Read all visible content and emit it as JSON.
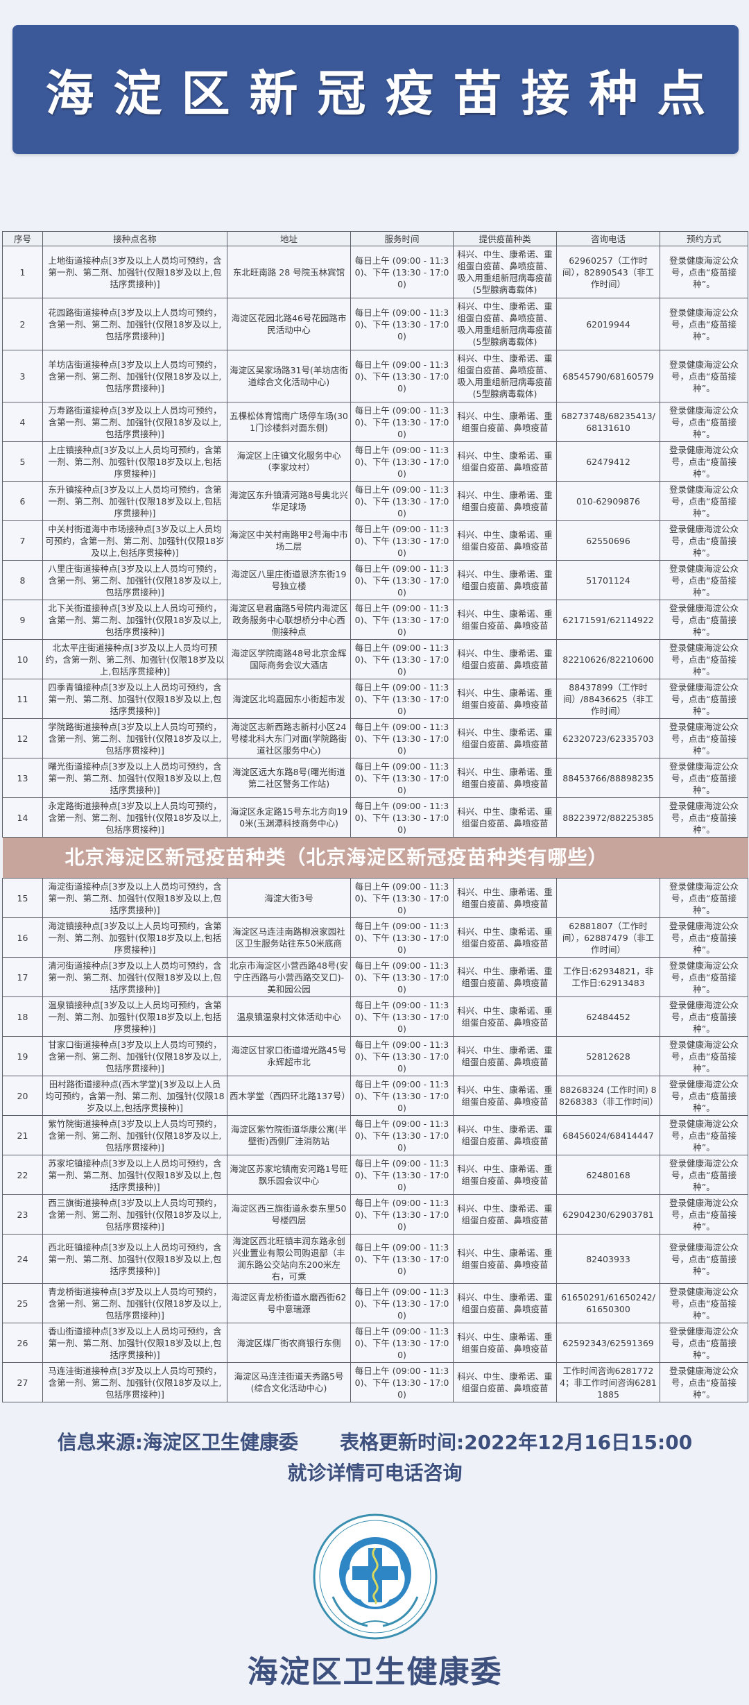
{
  "header": {
    "title": "海淀区新冠疫苗接种点"
  },
  "colors": {
    "banner": "#3b5898",
    "text_dark_blue": "#3d4f7c",
    "page_bg": "#eef2f8",
    "overlay": "#be968c"
  },
  "table": {
    "columns": [
      "序号",
      "接种点名称",
      "地址",
      "服务时间",
      "提供疫苗种类",
      "咨询电话",
      "预约方式"
    ],
    "rows": [
      {
        "no": "1",
        "name": "上地街道接种点[3岁及以上人员均可预约，含第一剂、第二剂、加强针(仅限18岁及以上,包括序贯接种)]",
        "address": "东北旺南路 28 号院玉林宾馆",
        "time": "每日上午 (09:00 - 11:30)、下午 (13:30 - 17:00)",
        "vaccine": "科兴、中生、康希诺、重组蛋白疫苗、鼻喷疫苗、吸入用重组新冠病毒疫苗(5型腺病毒载体)",
        "phone": "62960257（工作时间），82890543（非工作时间）",
        "booking": "登录健康海淀公众号，点击“疫苗接种”。"
      },
      {
        "no": "2",
        "name": "花园路街道接种点[3岁及以上人员均可预约，含第一剂、第二剂、加强针(仅限18岁及以上,包括序贯接种)]",
        "address": "海淀区花园北路46号花园路市民活动中心",
        "time": "每日上午 (09:00 - 11:30)、下午 (13:30 - 17:00)",
        "vaccine": "科兴、中生、康希诺、重组蛋白疫苗、鼻喷疫苗、吸入用重组新冠病毒疫苗(5型腺病毒载体)",
        "phone": "62019944",
        "booking": "登录健康海淀公众号，点击“疫苗接种”。"
      },
      {
        "no": "3",
        "name": "羊坊店街道接种点[3岁及以上人员均可预约，含第一剂、第二剂、加强针(仅限18岁及以上,包括序贯接种)]",
        "address": "海淀区吴家场路31号(羊坊店街道综合文化活动中心)",
        "time": "每日上午 (09:00 - 11:30)、下午 (13:30 - 17:00)",
        "vaccine": "科兴、中生、康希诺、重组蛋白疫苗、鼻喷疫苗、吸入用重组新冠病毒疫苗(5型腺病毒载体)",
        "phone": "68545790/68160579",
        "booking": "登录健康海淀公众号，点击“疫苗接种”。"
      },
      {
        "no": "4",
        "name": "万寿路街道接种点[3岁及以上人员均可预约，含第一剂、第二剂、加强针(仅限18岁及以上,包括序贯接种)]",
        "address": "五棵松体育馆南广场停车场(301门诊楼斜对面东侧)",
        "time": "每日上午 (09:00 - 11:30)、下午 (13:30 - 17:00)",
        "vaccine": "科兴、中生、康希诺、重组蛋白疫苗、鼻喷疫苗",
        "phone": "68273748/68235413/68131610",
        "booking": "登录健康海淀公众号，点击“疫苗接种”。"
      },
      {
        "no": "5",
        "name": "上庄镇接种点[3岁及以上人员均可预约，含第一剂、第二剂、加强针(仅限18岁及以上,包括序贯接种)]",
        "address": "海淀区上庄镇文化服务中心（李家坟村）",
        "time": "每日上午 (09:00 - 11:30)、下午 (13:30 - 17:00)",
        "vaccine": "科兴、中生、康希诺、重组蛋白疫苗、鼻喷疫苗",
        "phone": "62479412",
        "booking": "登录健康海淀公众号，点击“疫苗接种”。"
      },
      {
        "no": "6",
        "name": "东升镇接种点[3岁及以上人员均可预约，含第一剂、第二剂、加强针(仅限18岁及以上,包括序贯接种)]",
        "address": "海淀区东升镇清河路8号奥北兴华足球场",
        "time": "每日上午 (09:00 - 11:30)、下午 (13:30 - 17:00)",
        "vaccine": "科兴、中生、康希诺、重组蛋白疫苗、鼻喷疫苗",
        "phone": "010-62909876",
        "booking": "登录健康海淀公众号，点击“疫苗接种”。"
      },
      {
        "no": "7",
        "name": "中关村街道海中市场接种点[3岁及以上人员均可预约，含第一剂、第二剂、加强针(仅限18岁及以上,包括序贯接种)]",
        "address": "海淀区中关村南路甲2号海中市场二层",
        "time": "每日上午 (09:00 - 11:30)、下午 (13:30 - 17:00)",
        "vaccine": "科兴、中生、康希诺、重组蛋白疫苗、鼻喷疫苗",
        "phone": "62550696",
        "booking": "登录健康海淀公众号，点击“疫苗接种”。"
      },
      {
        "no": "8",
        "name": "八里庄街道接种点[3岁及以上人员均可预约，含第一剂、第二剂、加强针(仅限18岁及以上,包括序贯接种)]",
        "address": "海淀区八里庄街道恩济东街19号独立楼",
        "time": "每日上午 (09:00 - 11:30)、下午 (13:30 - 17:00)",
        "vaccine": "科兴、中生、康希诺、重组蛋白疫苗、鼻喷疫苗",
        "phone": "51701124",
        "booking": "登录健康海淀公众号，点击“疫苗接种”。"
      },
      {
        "no": "9",
        "name": "北下关街道接种点[3岁及以上人员均可预约，含第一剂、第二剂、加强针(仅限18岁及以上,包括序贯接种)]",
        "address": "海淀区皂君庙路5号院内海淀区政务服务中心联想桥分中心西侧接种点",
        "time": "每日上午 (09:00 - 11:30)、下午 (13:30 - 17:00)",
        "vaccine": "科兴、中生、康希诺、重组蛋白疫苗、鼻喷疫苗",
        "phone": "62171591/62114922",
        "booking": "登录健康海淀公众号，点击“疫苗接种”。"
      },
      {
        "no": "10",
        "name": "北太平庄街道接种点[3岁及以上人员均可预约，含第一剂、第二剂、加强针(仅限18岁及以上,包括序贯接种)]",
        "address": "海淀区学院南路48号北京金辉国际商务会议大酒店",
        "time": "每日上午 (09:00 - 11:30)、下午 (13:30 - 17:00)",
        "vaccine": "科兴、中生、康希诺、重组蛋白疫苗、鼻喷疫苗",
        "phone": "82210626/82210600",
        "booking": "登录健康海淀公众号，点击“疫苗接种”。"
      },
      {
        "no": "11",
        "name": "四季青镇接种点[3岁及以上人员均可预约，含第一剂、第二剂、加强针(仅限18岁及以上,包括序贯接种)]",
        "address": "海淀区北坞嘉园东小街超市发",
        "time": "每日上午 (09:00 - 11:30)、下午 (13:30 - 17:00)",
        "vaccine": "科兴、中生、康希诺、重组蛋白疫苗、鼻喷疫苗",
        "phone": "88437899（工作时间）/88436625（非工作时间）",
        "booking": "登录健康海淀公众号，点击“疫苗接种”。"
      },
      {
        "no": "12",
        "name": "学院路街道接种点[3岁及以上人员均可预约，含第一剂、第二剂、加强针(仅限18岁及以上,包括序贯接种)]",
        "address": "海淀区志新西路志新村小区24号楼北科大东门对面(学院路街道社区服务中心)",
        "time": "每日上午 (09:00 - 11:30)、下午 (13:30 - 17:00)",
        "vaccine": "科兴、中生、康希诺、重组蛋白疫苗、鼻喷疫苗",
        "phone": "62320723/62335703",
        "booking": "登录健康海淀公众号，点击“疫苗接种”。"
      },
      {
        "no": "13",
        "name": "曙光街道接种点[3岁及以上人员均可预约，含第一剂、第二剂、加强针(仅限18岁及以上,包括序贯接种)]",
        "address": "海淀区远大东路8号(曙光街道第二社区警务工作站)",
        "time": "每日上午 (09:00 - 11:30)、下午 (13:30 - 17:00)",
        "vaccine": "科兴、中生、康希诺、重组蛋白疫苗、鼻喷疫苗",
        "phone": "88453766/88898235",
        "booking": "登录健康海淀公众号，点击“疫苗接种”。"
      },
      {
        "no": "14",
        "name": "永定路街道接种点[3岁及以上人员均可预约，含第一剂、第二剂、加强针(仅限18岁及以上,包括序贯接种)]",
        "address": "海淀区永定路15号东北方向190米(玉渊潭科技商务中心)",
        "time": "每日上午 (09:00 - 11:30)、下午 (13:30 - 17:00)",
        "vaccine": "科兴、中生、康希诺、重组蛋白疫苗、鼻喷疫苗",
        "phone": "88223972/88225385",
        "booking": "登录健康海淀公众号，点击“疫苗接种”。"
      },
      {
        "no": "15",
        "name": "海淀街道接种点[3岁及以上人员均可预约，含第一剂、第二剂、加强针(仅限18岁及以上,包括序贯接种)]",
        "address": "海淀大街3号",
        "time": "每日上午 (09:00 - 11:30)、下午 (13:30 - 17:00)",
        "vaccine": "科兴、中生、康希诺、重组蛋白疫苗、鼻喷疫苗",
        "phone": "",
        "booking": "登录健康海淀公众号，点击“疫苗接种”。"
      },
      {
        "no": "16",
        "name": "海淀镇接种点[3岁及以上人员均可预约，含第一剂、第二剂、加强针(仅限18岁及以上,包括序贯接种)]",
        "address": "海淀区马连洼南路柳浪家园社区卫生服务站往东50米底商",
        "time": "每日上午 (09:00 - 11:30)、下午 (13:30 - 17:00)",
        "vaccine": "科兴、中生、康希诺、重组蛋白疫苗、鼻喷疫苗",
        "phone": "62881807（工作时间），62887479（非工作时间）",
        "booking": "登录健康海淀公众号，点击“疫苗接种”。"
      },
      {
        "no": "17",
        "name": "清河街道接种点[3岁及以上人员均可预约，含第一剂、第二剂、加强针(仅限18岁及以上,包括序贯接种)]",
        "address": "北京市海淀区小营西路48号(安宁庄西路与小营西路交叉口)-美和园公园",
        "time": "每日上午 (09:00 - 11:30)、下午 (13:30 - 17:00)",
        "vaccine": "科兴、中生、康希诺、重组蛋白疫苗、鼻喷疫苗",
        "phone": "工作日:62934821，非工作日:62913483",
        "booking": "登录健康海淀公众号，点击“疫苗接种”。"
      },
      {
        "no": "18",
        "name": "温泉镇接种点[3岁及以上人员均可预约，含第一剂、第二剂、加强针(仅限18岁及以上,包括序贯接种)]",
        "address": "温泉镇温泉村文体活动中心",
        "time": "每日上午 (09:00 - 11:30)、下午 (13:30 - 17:00)",
        "vaccine": "科兴、中生、康希诺、重组蛋白疫苗、鼻喷疫苗",
        "phone": "62484452",
        "booking": "登录健康海淀公众号，点击“疫苗接种”。"
      },
      {
        "no": "19",
        "name": "甘家口街道接种点[3岁及以上人员均可预约，含第一剂、第二剂、加强针(仅限18岁及以上,包括序贯接种)]",
        "address": "海淀区甘家口街道增光路45号永辉超市北",
        "time": "每日上午 (09:00 - 11:30)、下午 (13:30 - 17:00)",
        "vaccine": "科兴、中生、康希诺、重组蛋白疫苗、鼻喷疫苗",
        "phone": "52812628",
        "booking": "登录健康海淀公众号，点击“疫苗接种”。"
      },
      {
        "no": "20",
        "name": "田村路街道接种点(西木学堂)[3岁及以上人员均可预约，含第一剂、第二剂、加强针(仅限18岁及以上,包括序贯接种)]",
        "address": "西木学堂（西四环北路137号）",
        "time": "每日上午 (09:00 - 11:30)、下午 (13:30 - 17:00)",
        "vaccine": "科兴、中生、康希诺、重组蛋白疫苗、鼻喷疫苗",
        "phone": "88268324 (工作时间) 88268383（非工作时间）",
        "booking": "登录健康海淀公众号，点击“疫苗接种”。"
      },
      {
        "no": "21",
        "name": "紫竹院街道接种点[3岁及以上人员均可预约，含第一剂、第二剂、加强针(仅限18岁及以上,包括序贯接种)]",
        "address": "海淀区紫竹院街道华康公寓(半壁街)西侧厂洼消防站",
        "time": "每日上午 (09:00 - 11:30)、下午 (13:30 - 17:00)",
        "vaccine": "科兴、中生、康希诺、重组蛋白疫苗、鼻喷疫苗",
        "phone": "68456024/68414447",
        "booking": "登录健康海淀公众号，点击“疫苗接种”。"
      },
      {
        "no": "22",
        "name": "苏家坨镇接种点[3岁及以上人员均可预约，含第一剂、第二剂、加强针(仅限18岁及以上,包括序贯接种)]",
        "address": "海淀区苏家坨镇南安河路1号旺飘乐园会议中心",
        "time": "每日上午 (09:00 - 11:30)、下午 (13:30 - 17:00)",
        "vaccine": "科兴、中生、康希诺、重组蛋白疫苗、鼻喷疫苗",
        "phone": "62480168",
        "booking": "登录健康海淀公众号，点击“疫苗接种”。"
      },
      {
        "no": "23",
        "name": "西三旗街道接种点[3岁及以上人员均可预约，含第一剂、第二剂、加强针(仅限18岁及以上,包括序贯接种)]",
        "address": "海淀区西三旗街道永泰东里50号楼四层",
        "time": "每日上午 (09:00 - 11:30)、下午 (13:30 - 17:00)",
        "vaccine": "科兴、中生、康希诺、重组蛋白疫苗、鼻喷疫苗",
        "phone": "62904230/62903781",
        "booking": "登录健康海淀公众号，点击“疫苗接种”。"
      },
      {
        "no": "24",
        "name": "西北旺镇接种点[3岁及以上人员均可预约，含第一剂、第二剂、加强针(仅限18岁及以上,包括序贯接种)]",
        "address": "海淀区西北旺镇丰润东路永创兴业置业有限公司购退部（丰润东路公交站向东200米左右，可乘",
        "time": "每日上午 (09:00 - 11:30)、下午 (13:30 - 17:00)",
        "vaccine": "科兴、中生、康希诺、重组蛋白疫苗、鼻喷疫苗",
        "phone": "82403933",
        "booking": "登录健康海淀公众号，点击“疫苗接种”。"
      },
      {
        "no": "25",
        "name": "青龙桥街道接种点[3岁及以上人员均可预约，含第一剂、第二剂、加强针(仅限18岁及以上,包括序贯接种)]",
        "address": "海淀区青龙桥街道水磨西街62号中意瑞源",
        "time": "每日上午 (09:00 - 11:30)、下午 (13:30 - 17:00)",
        "vaccine": "科兴、中生、康希诺、重组蛋白疫苗、鼻喷疫苗",
        "phone": "61650291/61650242/61650300",
        "booking": "登录健康海淀公众号，点击“疫苗接种”。"
      },
      {
        "no": "26",
        "name": "香山街道接种点[3岁及以上人员均可预约，含第一剂、第二剂、加强针(仅限18岁及以上,包括序贯接种)]",
        "address": "海淀区煤厂街农商银行东侧",
        "time": "每日上午 (09:00 - 11:30)、下午 (13:30 - 17:00)",
        "vaccine": "科兴、中生、康希诺、重组蛋白疫苗、鼻喷疫苗",
        "phone": "62592343/62591369",
        "booking": "登录健康海淀公众号，点击“疫苗接种”。"
      },
      {
        "no": "27",
        "name": "马连洼街道接种点[3岁及以上人员均可预约，含第一剂、第二剂、加强针(仅限18岁及以上,包括序贯接种)]",
        "address": "海淀区马连洼街道天秀路5号(综合文化活动中心)",
        "time": "每日上午 (09:00 - 11:30)、下午 (13:30 - 17:00)",
        "vaccine": "科兴、中生、康希诺、重组蛋白疫苗、鼻喷疫苗",
        "phone": "工作时间咨询62817724；非工作时间咨询62811885",
        "booking": "登录健康海淀公众号，点击“疫苗接种”。"
      }
    ]
  },
  "overlay": {
    "caption": "北京海淀区新冠疫苗种类（北京海淀区新冠疫苗种类有哪些）"
  },
  "footer": {
    "source": "信息来源:海淀区卫生健康委",
    "updated": "表格更新时间:2022年12月16日15:00",
    "note": "就诊详情可电话咨询",
    "org_name": "海淀区卫生健康委",
    "logo_text": "北京市海淀区卫生健康委员会 HAIDIAN DISTRICT HEALTH COMMITTEE OF BEIJING",
    "logo_icon": "medical-cross-serpent-emblem"
  }
}
